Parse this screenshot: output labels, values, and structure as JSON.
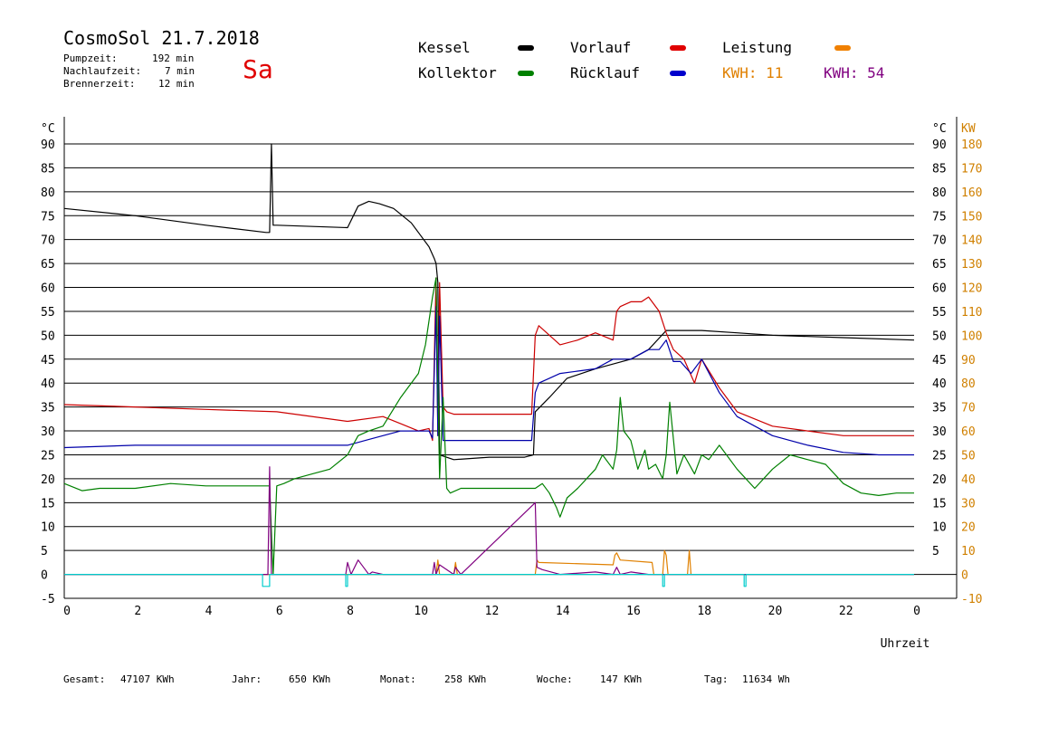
{
  "header": {
    "title": "CosmoSol 21.7.2018",
    "day": "Sa",
    "stats": [
      {
        "label": "Pumpzeit:",
        "value": "192 min"
      },
      {
        "label": "Nachlaufzeit:",
        "value": "7 min"
      },
      {
        "label": "Brennerzeit:",
        "value": "12 min"
      }
    ]
  },
  "legend": {
    "kessel": "Kessel",
    "kollektor": "Kollektor",
    "vorlauf": "Vorlauf",
    "ruecklauf": "Rücklauf",
    "leistung": "Leistung",
    "kwh1": "KWH: 11",
    "kwh2": "KWH: 54"
  },
  "footer": [
    {
      "label": "Gesamt:",
      "value": "47107 KWh"
    },
    {
      "label": "Jahr:",
      "value": "650 KWh"
    },
    {
      "label": "Monat:",
      "value": "258 KWh"
    },
    {
      "label": "Woche:",
      "value": "147 KWh"
    },
    {
      "label": "Tag:",
      "value": "11634 Wh"
    }
  ],
  "colors": {
    "kessel": "#000000",
    "kollektor": "#008000",
    "vorlauf": "#cc0000",
    "ruecklauf": "#0000aa",
    "leistung": "#e08000",
    "kwh2": "#800080",
    "pump": "#00cccc",
    "kw_axis": "#d08000",
    "day": "#e00000"
  },
  "chart_data": {
    "type": "line",
    "xlabel": "Uhrzeit",
    "ylabel_left": "°C",
    "ylabel_right": "KW",
    "xlim": [
      0,
      24
    ],
    "ylim": [
      -5,
      90
    ],
    "ylim_right": [
      -10,
      180
    ],
    "x_ticks": [
      "0",
      "2",
      "4",
      "6",
      "8",
      "10",
      "12",
      "14",
      "16",
      "18",
      "20",
      "22",
      "0"
    ],
    "y_ticks_left": [
      "-5",
      "0",
      "5",
      "10",
      "15",
      "20",
      "25",
      "30",
      "35",
      "40",
      "45",
      "50",
      "55",
      "60",
      "65",
      "70",
      "75",
      "80",
      "85",
      "90"
    ],
    "y_ticks_right_temp": [
      "5",
      "10",
      "15",
      "20",
      "25",
      "30",
      "35",
      "40",
      "45",
      "50",
      "55",
      "60",
      "65",
      "70",
      "75",
      "80",
      "85",
      "90"
    ],
    "y_ticks_right_kw": [
      "-10",
      "0",
      "10",
      "20",
      "30",
      "40",
      "50",
      "60",
      "70",
      "80",
      "90",
      "100",
      "110",
      "120",
      "130",
      "140",
      "150",
      "160",
      "170",
      "180"
    ],
    "grid": true,
    "series": [
      {
        "name": "Kessel",
        "color": "#000000",
        "x": [
          0,
          2,
          4,
          5.7,
          5.8,
          5.85,
          5.9,
          6.0,
          8.0,
          8.3,
          8.6,
          8.9,
          9.3,
          9.8,
          10.0,
          10.3,
          10.45,
          10.5,
          10.55,
          10.6,
          11.0,
          12,
          13.0,
          13.25,
          13.3,
          13.7,
          14.2,
          15,
          16,
          16.5,
          17,
          18,
          19,
          20,
          22,
          24
        ],
        "y": [
          76.5,
          75,
          73,
          71.5,
          71.5,
          90,
          73,
          73,
          72.5,
          77,
          78,
          77.5,
          76.5,
          73.5,
          71.5,
          68.5,
          66,
          65,
          61,
          25,
          24,
          24.5,
          24.5,
          25,
          34,
          37,
          41,
          43,
          45,
          47,
          51,
          51,
          50.5,
          50,
          49.5,
          49
        ]
      },
      {
        "name": "Vorlauf",
        "color": "#cc0000",
        "x": [
          0,
          2,
          4,
          6,
          8,
          9,
          9.5,
          10.0,
          10.3,
          10.4,
          10.5,
          10.55,
          10.6,
          10.7,
          10.8,
          11.0,
          12,
          13.2,
          13.3,
          13.4,
          14.0,
          14.5,
          15.0,
          15.5,
          15.6,
          15.7,
          16.0,
          16.3,
          16.5,
          16.8,
          17.0,
          17.2,
          17.5,
          17.8,
          18.0,
          18.5,
          19,
          20,
          21,
          22,
          23,
          24
        ],
        "y": [
          35.5,
          35,
          34.5,
          34,
          32,
          33,
          31.5,
          30,
          30.5,
          28,
          62,
          29,
          61,
          35,
          34,
          33.5,
          33.5,
          33.5,
          50,
          52,
          48,
          49,
          50.5,
          49,
          55,
          56,
          57,
          57,
          58,
          55,
          50.5,
          47,
          45,
          40,
          45,
          39,
          34,
          31,
          30,
          29,
          29,
          29
        ]
      },
      {
        "name": "Rücklauf",
        "color": "#0000aa",
        "x": [
          0,
          2,
          4,
          6,
          7.5,
          8,
          8.5,
          9,
          9.5,
          10.0,
          10.3,
          10.4,
          10.5,
          10.55,
          10.6,
          10.7,
          10.8,
          11.0,
          12,
          13.2,
          13.3,
          13.4,
          13.7,
          14,
          14.5,
          15,
          15.5,
          16,
          16.5,
          16.8,
          17.0,
          17.2,
          17.4,
          17.7,
          18.0,
          18.5,
          19,
          20,
          21,
          22,
          23,
          24
        ],
        "y": [
          26.5,
          27,
          27,
          27,
          27,
          27,
          28,
          29,
          30,
          30,
          30,
          28.5,
          56,
          29,
          54,
          28,
          28,
          28,
          28,
          28,
          38,
          40,
          41,
          42,
          42.5,
          43,
          45,
          45,
          47,
          47,
          49,
          44.5,
          44.5,
          42,
          45,
          38,
          33,
          29,
          27,
          25.5,
          25,
          25
        ]
      },
      {
        "name": "Kollektor",
        "color": "#008000",
        "x": [
          0,
          0.5,
          1,
          2,
          3,
          4,
          5,
          5.5,
          5.8,
          5.9,
          6.0,
          6.2,
          6.5,
          7.0,
          7.5,
          8.0,
          8.3,
          8.6,
          9.0,
          9.5,
          10.0,
          10.2,
          10.4,
          10.5,
          10.6,
          10.7,
          10.8,
          10.9,
          11.2,
          12,
          13.0,
          13.3,
          13.5,
          13.7,
          13.9,
          14.0,
          14.2,
          14.5,
          15.0,
          15.2,
          15.5,
          15.6,
          15.7,
          15.8,
          16.0,
          16.2,
          16.4,
          16.5,
          16.7,
          16.9,
          17.0,
          17.1,
          17.3,
          17.5,
          17.8,
          18.0,
          18.2,
          18.5,
          19.0,
          19.5,
          20.0,
          20.5,
          21,
          21.5,
          22,
          22.5,
          23,
          23.5,
          24
        ],
        "y": [
          19,
          17.5,
          18,
          18,
          19,
          18.5,
          18.5,
          18.5,
          18.5,
          0,
          18.5,
          19,
          20,
          21,
          22,
          25,
          29,
          30,
          31,
          37,
          42,
          48,
          58,
          62,
          20,
          37,
          18,
          17,
          18,
          18,
          18,
          18,
          19,
          17,
          14,
          12,
          16,
          18,
          22,
          25,
          22,
          26,
          37,
          30,
          28,
          22,
          26,
          22,
          23,
          20,
          25,
          36,
          21,
          25,
          21,
          25,
          24,
          27,
          22,
          18,
          22,
          25,
          24,
          23,
          19,
          17,
          16.5,
          17,
          17
        ]
      },
      {
        "name": "Leistung",
        "color": "#e08000",
        "unit": "KW",
        "x": [
          0,
          10.5,
          10.55,
          10.6,
          11.0,
          11.05,
          11.1,
          13.3,
          13.35,
          13.4,
          15.5,
          15.55,
          15.6,
          15.7,
          16.6,
          16.65,
          16.7,
          16.9,
          16.95,
          17.0,
          17.05,
          17.1,
          17.6,
          17.65,
          17.7,
          24
        ],
        "y": [
          0,
          0,
          6,
          0,
          0,
          5,
          0,
          0,
          6,
          5,
          4,
          8,
          9,
          6,
          5,
          0,
          0,
          0,
          10,
          8,
          0,
          0,
          0,
          10,
          0,
          0
        ]
      },
      {
        "name": "KWH",
        "color": "#800080",
        "unit": "KW",
        "x": [
          0,
          5.75,
          5.8,
          5.85,
          5.9,
          7.95,
          8.0,
          8.1,
          8.3,
          8.5,
          8.6,
          8.7,
          9.0,
          10.4,
          10.45,
          10.5,
          10.6,
          11.0,
          11.05,
          11.2,
          13.3,
          13.35,
          13.5,
          14,
          15,
          15.5,
          15.6,
          15.7,
          16.0,
          16.5,
          16.6,
          24
        ],
        "y": [
          0,
          0,
          45,
          0,
          0,
          0,
          5,
          0,
          6,
          2,
          0,
          1,
          0,
          0,
          5,
          0,
          4,
          0,
          3,
          0,
          30,
          3,
          2,
          0,
          1,
          0,
          3,
          0,
          1,
          0,
          0,
          0
        ]
      },
      {
        "name": "Pumpe",
        "color": "#00cccc",
        "x": [
          0,
          5.6,
          5.6,
          5.8,
          5.8,
          7.95,
          7.95,
          8.0,
          8.0,
          16.9,
          16.9,
          16.95,
          16.95,
          19.2,
          19.2,
          19.25,
          19.25,
          24
        ],
        "y": [
          0,
          0,
          -2.5,
          -2.5,
          0,
          0,
          -2.5,
          -2.5,
          0,
          0,
          -2.5,
          -2.5,
          0,
          0,
          -2.5,
          -2.5,
          0,
          0
        ]
      }
    ]
  }
}
